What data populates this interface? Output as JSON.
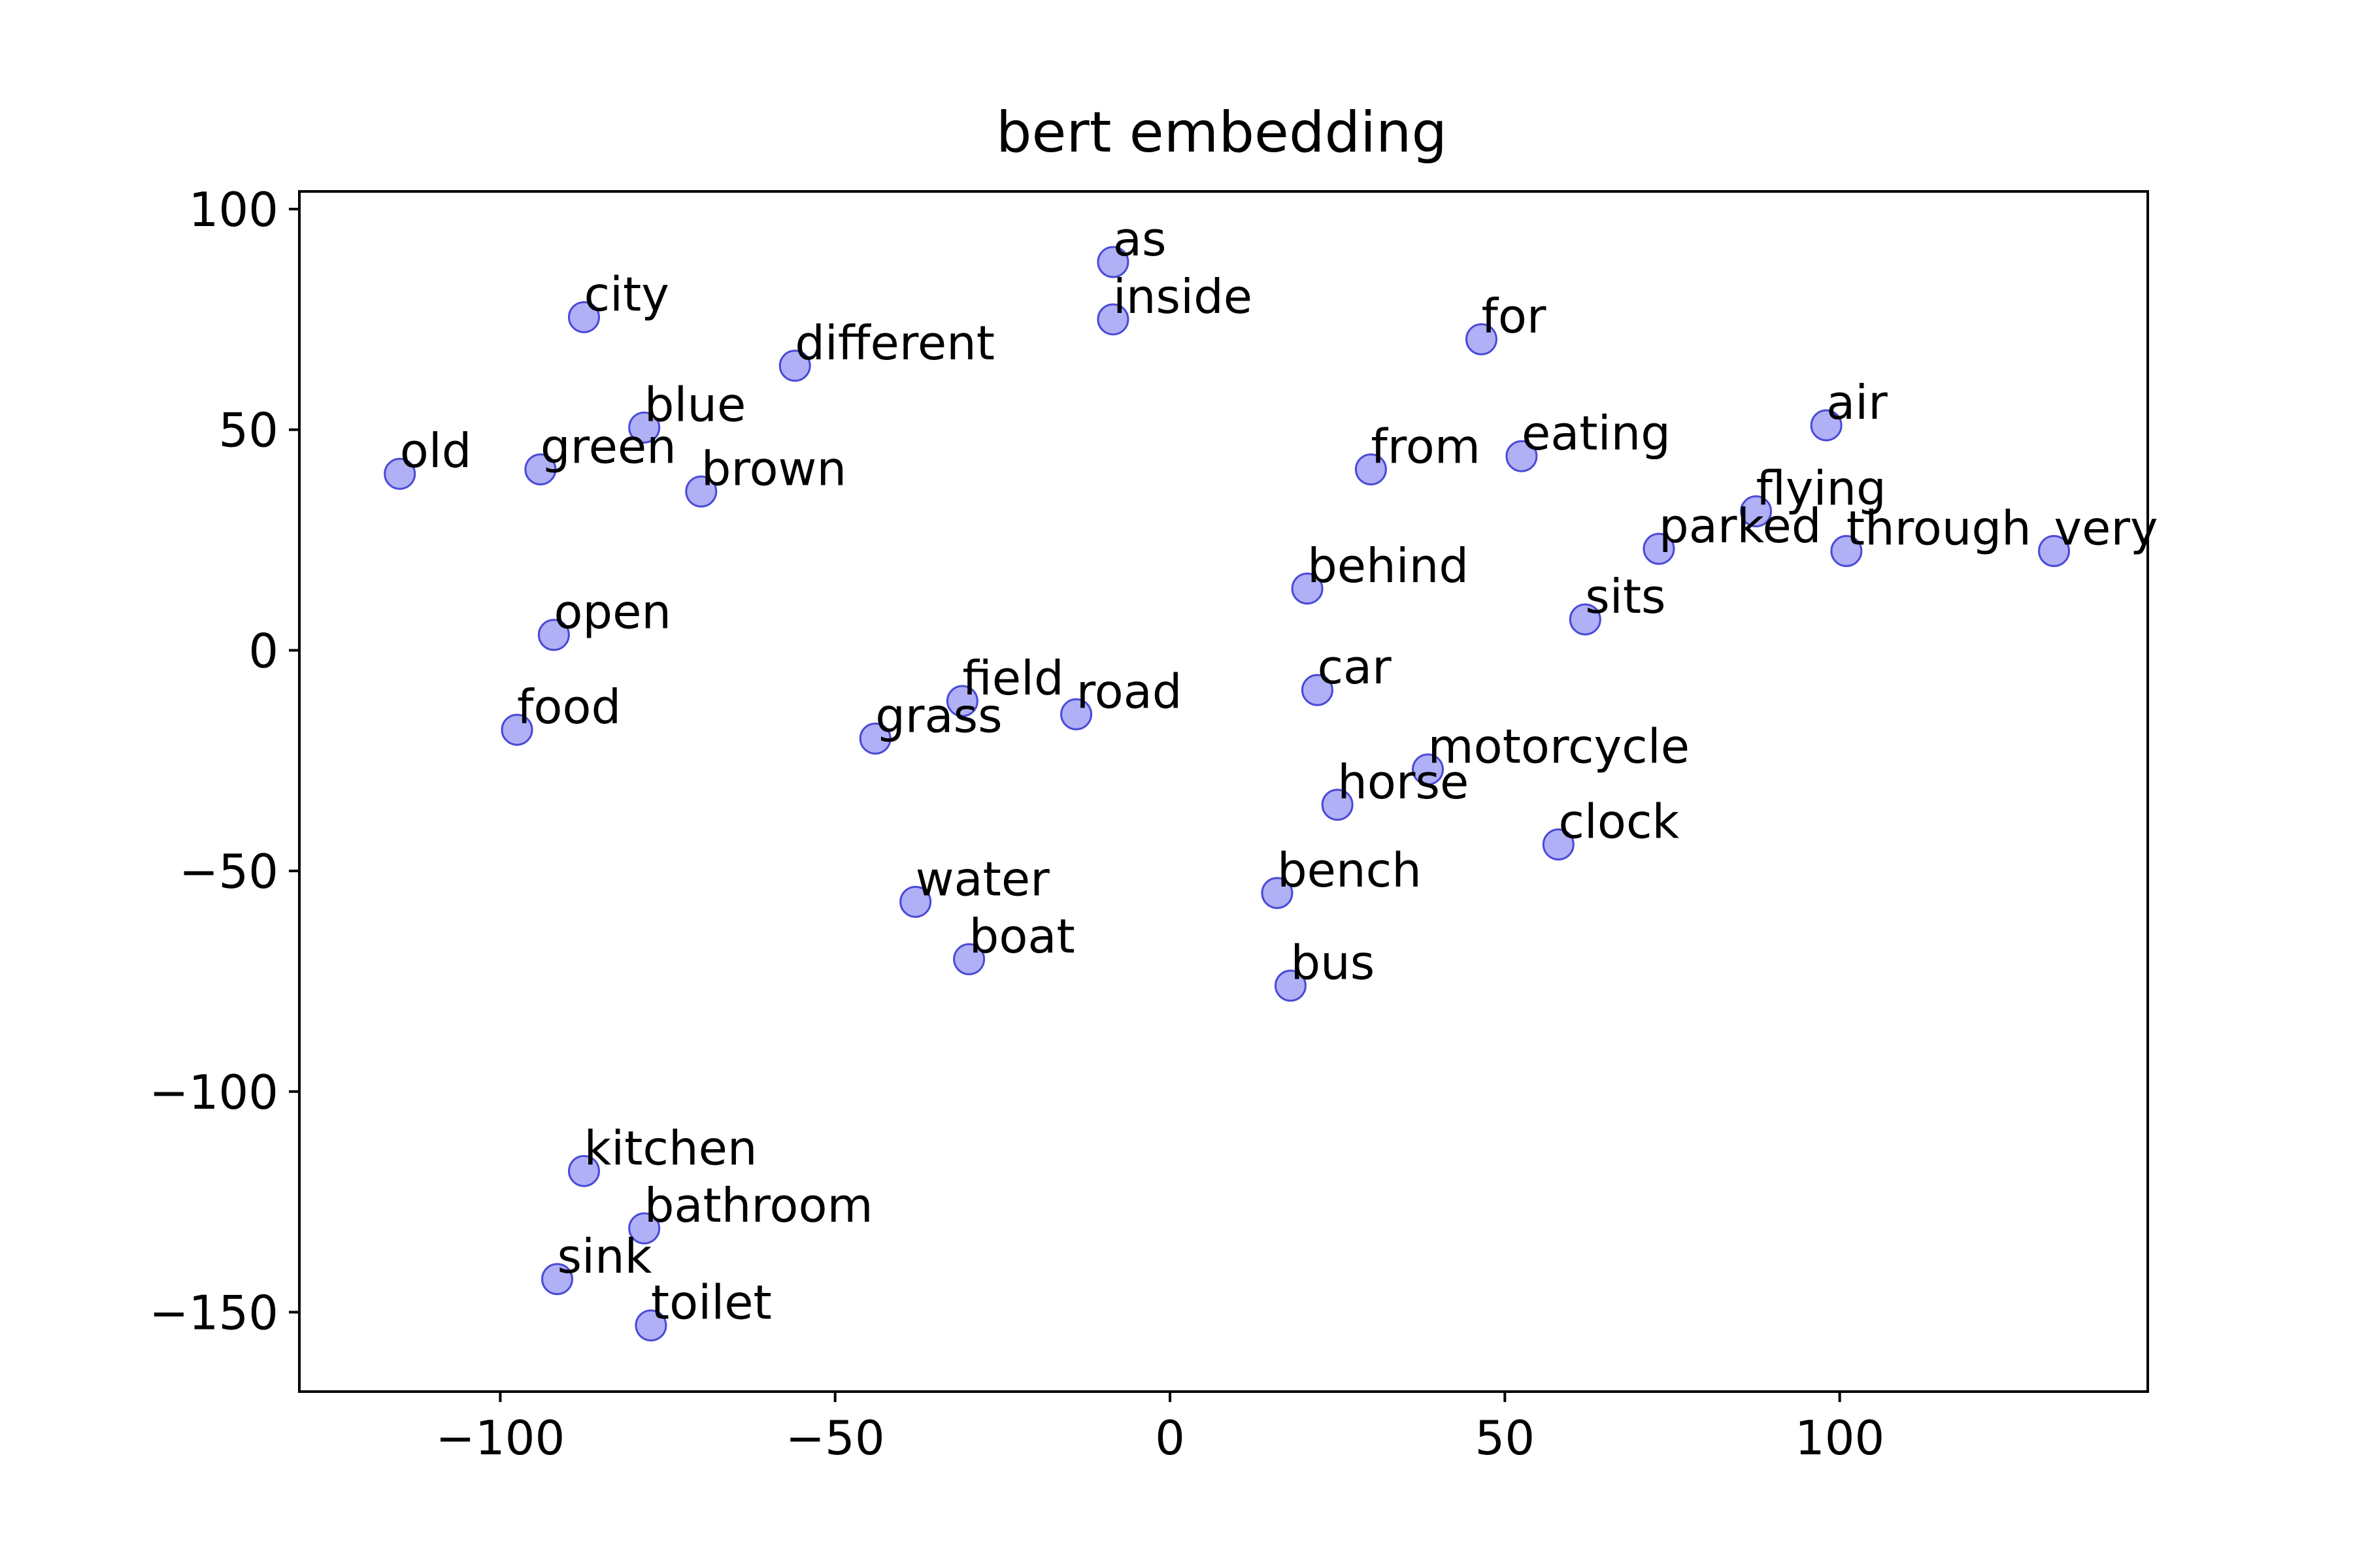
{
  "chart_data": {
    "type": "scatter",
    "title": "bert embedding",
    "xlabel": "",
    "ylabel": "",
    "xlim": [
      -130,
      146
    ],
    "ylim": [
      -168,
      104
    ],
    "xticks": [
      -100,
      -50,
      0,
      50,
      100
    ],
    "yticks": [
      100,
      50,
      0,
      -50,
      -100,
      -150
    ],
    "xtick_labels": [
      "−100",
      "−50",
      "0",
      "50",
      "100"
    ],
    "ytick_labels": [
      "100",
      "50",
      "0",
      "−50",
      "−100",
      "−150"
    ],
    "grid": false,
    "marker_color": "#7b7bf0",
    "marker_edge_color": "#4a4ad8",
    "points": [
      {
        "label": "as",
        "x": -8.5,
        "y": 88
      },
      {
        "label": "inside",
        "x": -8.5,
        "y": 75
      },
      {
        "label": "city",
        "x": -87.5,
        "y": 75.5
      },
      {
        "label": "different",
        "x": -56,
        "y": 64.5
      },
      {
        "label": "for",
        "x": 46.5,
        "y": 70.5
      },
      {
        "label": "blue",
        "x": -78.5,
        "y": 50.5
      },
      {
        "label": "old",
        "x": -115,
        "y": 40
      },
      {
        "label": "green",
        "x": -94,
        "y": 41
      },
      {
        "label": "brown",
        "x": -70,
        "y": 36
      },
      {
        "label": "from",
        "x": 30,
        "y": 41
      },
      {
        "label": "eating",
        "x": 52.5,
        "y": 44
      },
      {
        "label": "air",
        "x": 98,
        "y": 51
      },
      {
        "label": "flying",
        "x": 87.5,
        "y": 31.5
      },
      {
        "label": "parked",
        "x": 73,
        "y": 23
      },
      {
        "label": "through",
        "x": 101,
        "y": 22.5
      },
      {
        "label": "very",
        "x": 132,
        "y": 22.5
      },
      {
        "label": "behind",
        "x": 20.5,
        "y": 14
      },
      {
        "label": "sits",
        "x": 62,
        "y": 7
      },
      {
        "label": "open",
        "x": -92,
        "y": 3.5
      },
      {
        "label": "field",
        "x": -31,
        "y": -11.5
      },
      {
        "label": "road",
        "x": -14,
        "y": -14.5
      },
      {
        "label": "grass",
        "x": -44,
        "y": -20
      },
      {
        "label": "food",
        "x": -97.5,
        "y": -18
      },
      {
        "label": "car",
        "x": 22,
        "y": -9
      },
      {
        "label": "motorcycle",
        "x": 38.5,
        "y": -27
      },
      {
        "label": "horse",
        "x": 25,
        "y": -35
      },
      {
        "label": "clock",
        "x": 58,
        "y": -44
      },
      {
        "label": "water",
        "x": -38,
        "y": -57
      },
      {
        "label": "bench",
        "x": 16,
        "y": -55
      },
      {
        "label": "boat",
        "x": -30,
        "y": -70
      },
      {
        "label": "bus",
        "x": 18,
        "y": -76
      },
      {
        "label": "kitchen",
        "x": -87.5,
        "y": -118
      },
      {
        "label": "bathroom",
        "x": -78.5,
        "y": -131
      },
      {
        "label": "sink",
        "x": -91.5,
        "y": -142.5
      },
      {
        "label": "toilet",
        "x": -77.5,
        "y": -153
      }
    ]
  }
}
